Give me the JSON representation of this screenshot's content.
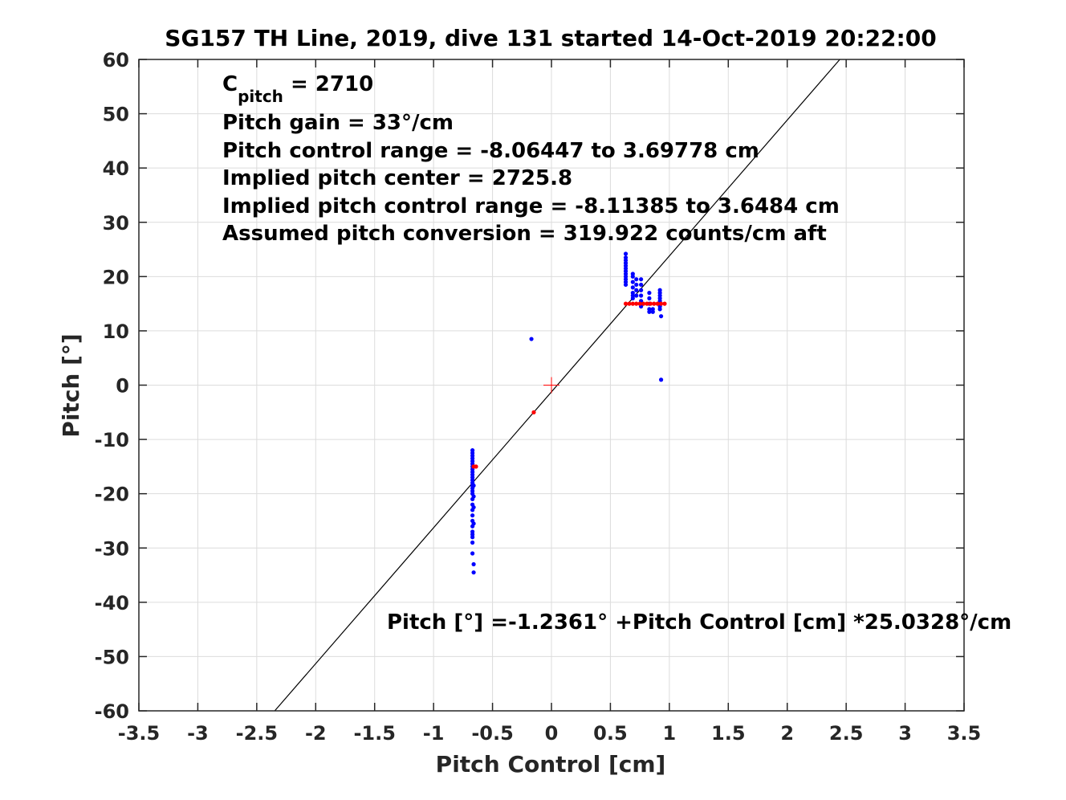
{
  "chart_data": {
    "type": "scatter",
    "title": "SG157 TH Line, 2019, dive 131 started 14-Oct-2019 20:22:00",
    "xlabel": "Pitch Control [cm]",
    "ylabel": "Pitch [°]",
    "xlim": [
      -3.5,
      3.5
    ],
    "ylim": [
      -60,
      60
    ],
    "xticks": [
      -3.5,
      -3,
      -2.5,
      -2,
      -1.5,
      -1,
      -0.5,
      0,
      0.5,
      1,
      1.5,
      2,
      2.5,
      3,
      3.5
    ],
    "yticks": [
      -60,
      -50,
      -40,
      -30,
      -20,
      -10,
      0,
      10,
      20,
      30,
      40,
      50,
      60
    ],
    "xtick_labels": [
      "-3.5",
      "-3",
      "-2.5",
      "-2",
      "-1.5",
      "-1",
      "-0.5",
      "0",
      "0.5",
      "1",
      "1.5",
      "2",
      "2.5",
      "3",
      "3.5"
    ],
    "ytick_labels": [
      "-60",
      "-50",
      "-40",
      "-30",
      "-20",
      "-10",
      "0",
      "10",
      "20",
      "30",
      "40",
      "50",
      "60"
    ],
    "grid": true,
    "colors": {
      "blue": "#0000ff",
      "red": "#ff0000",
      "line": "#000000"
    },
    "annotations": {
      "cpitch_base": "C",
      "cpitch_sub": "pitch",
      "cpitch_value": " = 2710",
      "pitch_gain": "Pitch gain = 33°/cm",
      "control_range": "Pitch control range = -8.06447 to 3.69778 cm",
      "implied_center": "Implied pitch center = 2725.8",
      "implied_range": "Implied pitch control range = -8.11385 to 3.6484 cm",
      "conversion": "Assumed pitch conversion = 319.922 counts/cm aft",
      "fit_equation": "Pitch [°] =-1.2361° +Pitch Control [cm] *25.0328°/cm"
    },
    "fit_line": {
      "intercept": -1.2361,
      "slope": 25.0328
    },
    "center_marker": {
      "x": 0,
      "y": 0
    },
    "series": [
      {
        "color": "blue",
        "x": [
          -0.67,
          -0.67,
          -0.67,
          -0.67,
          -0.67,
          -0.67,
          -0.67,
          -0.67,
          -0.67,
          -0.67,
          -0.67,
          -0.67,
          -0.67,
          -0.67,
          -0.67,
          -0.67,
          -0.67,
          -0.67,
          -0.67,
          -0.67,
          -0.67,
          -0.67,
          -0.67,
          -0.67,
          -0.67,
          -0.67,
          -0.67,
          -0.67,
          -0.66,
          -0.66,
          -0.66,
          -0.66,
          -0.66,
          -0.66,
          -0.17,
          0.63,
          0.63,
          0.63,
          0.63,
          0.63,
          0.63,
          0.63,
          0.63,
          0.63,
          0.63,
          0.63,
          0.63,
          0.69,
          0.69,
          0.69,
          0.69,
          0.69,
          0.69,
          0.69,
          0.72,
          0.72,
          0.72,
          0.72,
          0.76,
          0.76,
          0.76,
          0.76,
          0.76,
          0.76,
          0.76,
          0.83,
          0.83,
          0.83,
          0.83,
          0.83,
          0.86,
          0.86,
          0.92,
          0.92,
          0.92,
          0.92,
          0.92,
          0.92,
          0.92,
          0.92,
          0.93,
          0.93
        ],
        "y": [
          -12,
          -12.5,
          -13,
          -13.5,
          -14,
          -14.5,
          -15,
          -15.5,
          -16,
          -16.5,
          -17,
          -17.5,
          -18,
          -18.5,
          -19,
          -19.5,
          -20,
          -21,
          -22,
          -23,
          -24,
          -25,
          -26,
          -27,
          -27.5,
          -28,
          -29,
          -31,
          -33,
          -34.5,
          -18.5,
          -20.5,
          -22.5,
          -25.5,
          8.5,
          24.2,
          23.5,
          23,
          22.5,
          22,
          21.5,
          21,
          20.5,
          20,
          19.5,
          19,
          18.5,
          20.5,
          20,
          19,
          18,
          17,
          16.5,
          16,
          19.5,
          18.5,
          17.5,
          16.5,
          19.5,
          18.5,
          17.5,
          16.5,
          15.5,
          15,
          14.5,
          17,
          16,
          15,
          14,
          13.5,
          14,
          13.5,
          17.5,
          17,
          16.5,
          16,
          15.5,
          15,
          14.5,
          14,
          12.7,
          1
        ]
      },
      {
        "color": "red",
        "x": [
          -0.66,
          -0.64,
          -0.15,
          0.63,
          0.66,
          0.69,
          0.72,
          0.75,
          0.78,
          0.81,
          0.84,
          0.87,
          0.9,
          0.93,
          0.96
        ],
        "y": [
          -15,
          -15,
          -5,
          15,
          15,
          15,
          15,
          15,
          15,
          15,
          15,
          15,
          15,
          15,
          15
        ]
      }
    ]
  }
}
